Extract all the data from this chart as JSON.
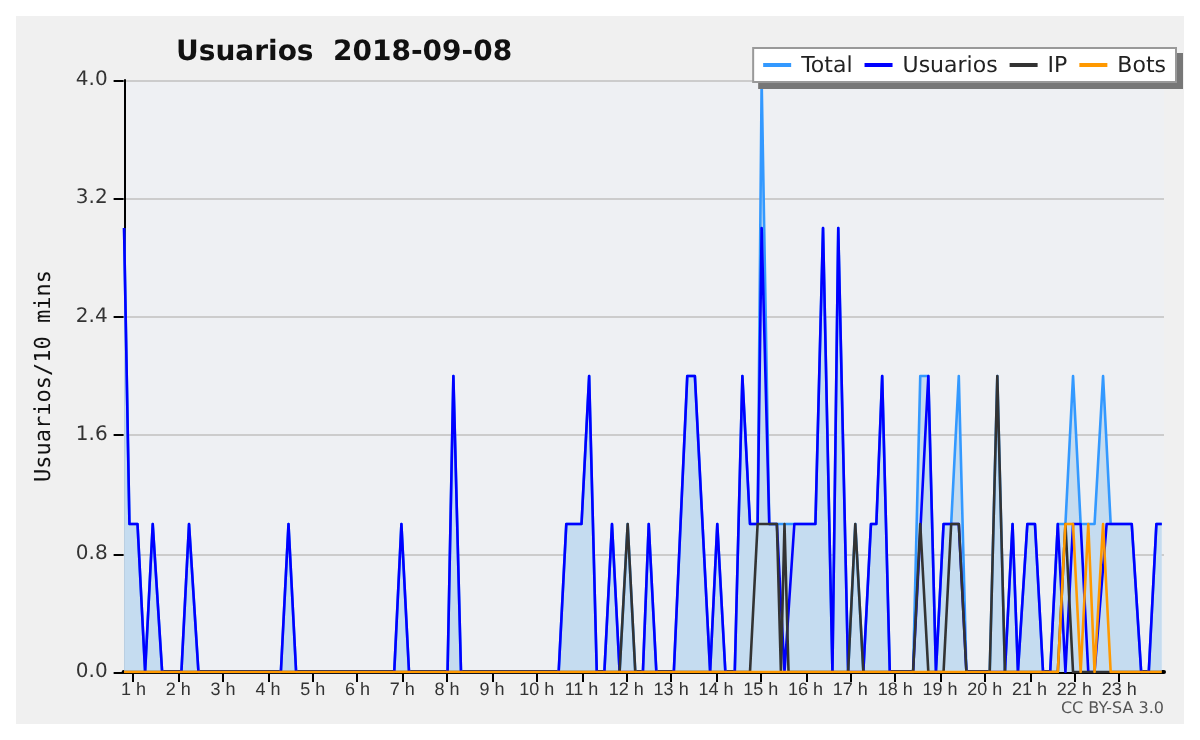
{
  "chart_data": {
    "type": "line",
    "title": "Usuarios  2018-09-08",
    "ylabel": "Usuarios/10 mins",
    "annotations": [
      "CC BY-SA 3.0"
    ],
    "xlim": [
      0.78,
      24
    ],
    "ylim": [
      0,
      4
    ],
    "xticks": [
      {
        "value": 1,
        "label": "1 h"
      },
      {
        "value": 2,
        "label": "2 h"
      },
      {
        "value": 3,
        "label": "3 h"
      },
      {
        "value": 4,
        "label": "4 h"
      },
      {
        "value": 5,
        "label": "5 h"
      },
      {
        "value": 6,
        "label": "6 h"
      },
      {
        "value": 7,
        "label": "7 h"
      },
      {
        "value": 8,
        "label": "8 h"
      },
      {
        "value": 9,
        "label": "9 h"
      },
      {
        "value": 10,
        "label": "10 h"
      },
      {
        "value": 11,
        "label": "11 h"
      },
      {
        "value": 12,
        "label": "12 h"
      },
      {
        "value": 13,
        "label": "13 h"
      },
      {
        "value": 14,
        "label": "14 h"
      },
      {
        "value": 15,
        "label": "15 h"
      },
      {
        "value": 16,
        "label": "16 h"
      },
      {
        "value": 17,
        "label": "17 h"
      },
      {
        "value": 18,
        "label": "18 h"
      },
      {
        "value": 19,
        "label": "19 h"
      },
      {
        "value": 20,
        "label": "20 h"
      },
      {
        "value": 21,
        "label": "21 h"
      },
      {
        "value": 22,
        "label": "22 h"
      },
      {
        "value": 23,
        "label": "23 h"
      }
    ],
    "yticks": [
      {
        "value": 0,
        "label": "0.0"
      },
      {
        "value": 0.8,
        "label": "0.8"
      },
      {
        "value": 1.6,
        "label": "1.6"
      },
      {
        "value": 2.4,
        "label": "2.4"
      },
      {
        "value": 3.2,
        "label": "3.2"
      },
      {
        "value": 4,
        "label": "4.0"
      }
    ],
    "grid": "y",
    "legend": "top right",
    "marker": "none",
    "line_style": "solid",
    "series": [
      {
        "name": "Total",
        "type": "area",
        "color": "#3399ff",
        "x": [
          0.79,
          0.91,
          1.09,
          1.26,
          1.43,
          1.64,
          2.07,
          2.24,
          2.45,
          4.29,
          4.46,
          4.63,
          6.82,
          6.98,
          7.15,
          8.01,
          8.14,
          8.31,
          10.49,
          10.66,
          11.0,
          11.17,
          11.34,
          11.51,
          11.68,
          11.85,
          12.03,
          12.2,
          12.37,
          12.5,
          12.67,
          13.06,
          13.36,
          13.53,
          13.87,
          14.03,
          14.21,
          14.42,
          14.59,
          14.76,
          14.93,
          15.02,
          15.19,
          15.36,
          15.53,
          15.75,
          16.22,
          16.39,
          16.6,
          16.73,
          16.95,
          17.11,
          17.29,
          17.46,
          17.58,
          17.71,
          17.88,
          18.4,
          18.56,
          18.74,
          18.91,
          19.08,
          19.25,
          19.42,
          19.59,
          20.11,
          20.28,
          20.45,
          20.62,
          20.74,
          20.95,
          21.12,
          21.3,
          21.46,
          21.63,
          21.8,
          21.97,
          22.14,
          22.31,
          22.45,
          22.64,
          22.81,
          23.28,
          23.49,
          23.66,
          23.83,
          23.95
        ],
        "values": [
          3,
          1,
          1,
          0,
          1,
          0,
          0,
          1,
          0,
          0,
          1,
          0,
          0,
          1,
          0,
          0,
          2,
          0,
          0,
          1,
          1,
          2,
          0,
          0,
          1,
          0,
          1,
          0,
          0,
          1,
          0,
          0,
          2,
          2,
          0,
          1,
          0,
          0,
          2,
          1,
          1,
          4,
          1,
          1,
          1,
          1,
          1,
          3,
          0,
          3,
          0,
          1,
          0,
          1,
          1,
          2,
          0,
          0,
          2,
          2,
          0,
          1,
          1,
          2,
          0,
          0,
          2,
          0,
          1,
          0,
          1,
          1,
          0,
          0,
          1,
          1,
          2,
          1,
          1,
          1,
          2,
          1,
          1,
          0,
          0,
          1,
          1
        ]
      },
      {
        "name": "Usuarios",
        "color": "#0000ff",
        "x": [
          0.79,
          0.91,
          1.09,
          1.26,
          1.43,
          1.64,
          2.07,
          2.24,
          2.45,
          4.29,
          4.46,
          4.63,
          6.82,
          6.98,
          7.15,
          8.01,
          8.14,
          8.31,
          10.49,
          10.66,
          11.0,
          11.17,
          11.34,
          11.51,
          11.68,
          11.85,
          12.37,
          12.5,
          12.67,
          13.06,
          13.36,
          13.53,
          13.87,
          14.03,
          14.21,
          14.42,
          14.59,
          14.76,
          14.93,
          15.02,
          15.19,
          15.36,
          15.53,
          15.75,
          16.22,
          16.39,
          16.6,
          16.73,
          16.95,
          17.29,
          17.46,
          17.58,
          17.71,
          17.88,
          18.4,
          18.74,
          18.91,
          19.08,
          19.42,
          19.59,
          20.45,
          20.62,
          20.74,
          20.95,
          21.12,
          21.3,
          21.46,
          21.63,
          21.8,
          21.97,
          22.14,
          22.31,
          22.45,
          22.72,
          23.28,
          23.49,
          23.66,
          23.83,
          23.95
        ],
        "values": [
          3,
          1,
          1,
          0,
          1,
          0,
          0,
          1,
          0,
          0,
          1,
          0,
          0,
          1,
          0,
          0,
          2,
          0,
          0,
          1,
          1,
          2,
          0,
          0,
          1,
          0,
          0,
          1,
          0,
          0,
          2,
          2,
          0,
          1,
          0,
          0,
          2,
          1,
          1,
          3,
          1,
          1,
          0,
          1,
          1,
          3,
          0,
          3,
          0,
          0,
          1,
          1,
          2,
          0,
          0,
          2,
          0,
          1,
          1,
          0,
          0,
          1,
          0,
          1,
          1,
          0,
          0,
          1,
          0,
          1,
          1,
          0,
          0,
          1,
          1,
          0,
          0,
          1,
          1
        ]
      },
      {
        "name": "IP",
        "color": "#333333",
        "x": [
          0.79,
          11.85,
          12.03,
          12.2,
          14.76,
          14.93,
          15.36,
          15.45,
          15.53,
          15.62,
          16.95,
          17.11,
          17.29,
          18.4,
          18.56,
          18.74,
          19.08,
          19.25,
          19.42,
          19.59,
          20.11,
          20.28,
          20.45,
          21.63,
          21.8,
          21.97,
          23.95
        ],
        "values": [
          0,
          0,
          1,
          0,
          0,
          1,
          1,
          0,
          1,
          0,
          0,
          1,
          0,
          0,
          1,
          0,
          0,
          1,
          1,
          0,
          0,
          2,
          0,
          0,
          1,
          0,
          0
        ]
      },
      {
        "name": "Bots",
        "color": "#ff9900",
        "x": [
          0.79,
          21.63,
          21.8,
          21.97,
          22.14,
          22.31,
          22.45,
          22.64,
          22.81,
          23.95
        ],
        "values": [
          0,
          0,
          1,
          1,
          0,
          1,
          0,
          1,
          0,
          0
        ]
      }
    ]
  }
}
